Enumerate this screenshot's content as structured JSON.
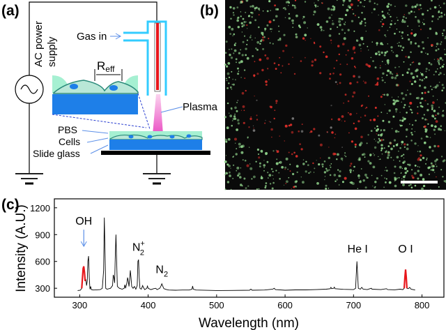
{
  "panel_a": {
    "label": "(a)",
    "power_supply": [
      "AC power",
      "supply"
    ],
    "gas_in": "Gas in",
    "r_eff": "R",
    "r_eff_sub": "eff",
    "plasma": "Plasma",
    "pbs": "PBS",
    "cells": "Cells",
    "slide_glass": "Slide glass",
    "colors": {
      "tube": "#33ccff",
      "electrode": "#e8161b",
      "glass": "#1e7fe8",
      "pbs": "#a6f0d2",
      "plasma": "#f07ccf"
    }
  },
  "panel_b": {
    "label": "(b)",
    "colors": {
      "background": "#0a0a0a",
      "live": "#8fd18a",
      "dead": "#e0302a",
      "scale_bar": "#ffffff"
    }
  },
  "panel_c": {
    "label": "(c)"
  },
  "chart_data": {
    "type": "line",
    "xlabel": "Wavelength (nm)",
    "ylabel": "Intensity (A.U.)",
    "xlim": [
      263,
      832
    ],
    "ylim": [
      200,
      1300
    ],
    "xticks": [
      300,
      400,
      500,
      600,
      700,
      800
    ],
    "yticks": [
      300,
      600,
      900,
      1200
    ],
    "grid": false,
    "series": [
      {
        "color": "#000000",
        "points": [
          [
            297,
            275
          ],
          [
            301,
            278
          ],
          [
            303,
            300
          ],
          [
            305,
            520
          ],
          [
            306,
            545
          ],
          [
            307,
            480
          ],
          [
            308,
            380
          ],
          [
            309,
            400
          ],
          [
            310,
            330
          ],
          [
            311,
            380
          ],
          [
            312,
            600
          ],
          [
            313,
            660
          ],
          [
            314,
            420
          ],
          [
            315,
            290
          ],
          [
            316,
            320
          ],
          [
            317,
            285
          ],
          [
            320,
            280
          ],
          [
            325,
            283
          ],
          [
            330,
            285
          ],
          [
            333,
            300
          ],
          [
            335,
            500
          ],
          [
            336,
            1090
          ],
          [
            337,
            700
          ],
          [
            338,
            300
          ],
          [
            340,
            290
          ],
          [
            345,
            300
          ],
          [
            348,
            330
          ],
          [
            349,
            450
          ],
          [
            350,
            420
          ],
          [
            351,
            360
          ],
          [
            352,
            650
          ],
          [
            353,
            900
          ],
          [
            354,
            600
          ],
          [
            355,
            320
          ],
          [
            358,
            300
          ],
          [
            362,
            290
          ],
          [
            365,
            300
          ],
          [
            366,
            340
          ],
          [
            367,
            300
          ],
          [
            369,
            360
          ],
          [
            370,
            420
          ],
          [
            371,
            380
          ],
          [
            372,
            320
          ],
          [
            373,
            400
          ],
          [
            374,
            500
          ],
          [
            375,
            420
          ],
          [
            376,
            320
          ],
          [
            378,
            300
          ],
          [
            380,
            320
          ],
          [
            382,
            290
          ],
          [
            384,
            330
          ],
          [
            385,
            600
          ],
          [
            386,
            620
          ],
          [
            387,
            420
          ],
          [
            388,
            300
          ],
          [
            390,
            290
          ],
          [
            392,
            330
          ],
          [
            393,
            310
          ],
          [
            395,
            285
          ],
          [
            398,
            300
          ],
          [
            399,
            325
          ],
          [
            400,
            300
          ],
          [
            404,
            285
          ],
          [
            408,
            295
          ],
          [
            411,
            300
          ],
          [
            413,
            285
          ],
          [
            417,
            300
          ],
          [
            419,
            330
          ],
          [
            420,
            350
          ],
          [
            421,
            330
          ],
          [
            423,
            295
          ],
          [
            427,
            285
          ],
          [
            430,
            280
          ],
          [
            440,
            278
          ],
          [
            450,
            280
          ],
          [
            460,
            280
          ],
          [
            464,
            290
          ],
          [
            465,
            325
          ],
          [
            466,
            290
          ],
          [
            470,
            280
          ],
          [
            500,
            275
          ],
          [
            520,
            276
          ],
          [
            548,
            278
          ],
          [
            550,
            290
          ],
          [
            552,
            278
          ],
          [
            570,
            280
          ],
          [
            582,
            290
          ],
          [
            584,
            300
          ],
          [
            586,
            285
          ],
          [
            600,
            278
          ],
          [
            615,
            282
          ],
          [
            630,
            282
          ],
          [
            645,
            285
          ],
          [
            660,
            290
          ],
          [
            666,
            295
          ],
          [
            667,
            310
          ],
          [
            668,
            295
          ],
          [
            671,
            300
          ],
          [
            672,
            312
          ],
          [
            673,
            295
          ],
          [
            685,
            288
          ],
          [
            700,
            285
          ],
          [
            703,
            300
          ],
          [
            704,
            450
          ],
          [
            705,
            600
          ],
          [
            706,
            450
          ],
          [
            707,
            300
          ],
          [
            710,
            290
          ],
          [
            712,
            310
          ],
          [
            714,
            290
          ],
          [
            720,
            285
          ],
          [
            726,
            300
          ],
          [
            727,
            290
          ],
          [
            740,
            285
          ],
          [
            748,
            295
          ],
          [
            750,
            285
          ],
          [
            760,
            283
          ],
          [
            768,
            290
          ],
          [
            772,
            285
          ],
          [
            774,
            300
          ],
          [
            775,
            420
          ],
          [
            776,
            510
          ],
          [
            777,
            420
          ],
          [
            778,
            300
          ],
          [
            780,
            295
          ],
          [
            782,
            310
          ],
          [
            784,
            290
          ],
          [
            790,
            280
          ]
        ]
      }
    ],
    "highlighted_ranges": [
      {
        "from": 302,
        "to": 308,
        "color": "#e8161b"
      },
      {
        "from": 773,
        "to": 779,
        "color": "#e8161b"
      }
    ],
    "annotations": [
      {
        "text": "OH",
        "x": 306,
        "y": 1010,
        "arrow_color": "#5b8fe8"
      },
      {
        "text": "N",
        "sub": "2",
        "sup": "+",
        "x": 386,
        "y": 720
      },
      {
        "text": "N",
        "sub": "2",
        "x": 420,
        "y": 470
      },
      {
        "text": "He I",
        "x": 706,
        "y": 700
      },
      {
        "text": "O I",
        "x": 776,
        "y": 700
      }
    ]
  }
}
